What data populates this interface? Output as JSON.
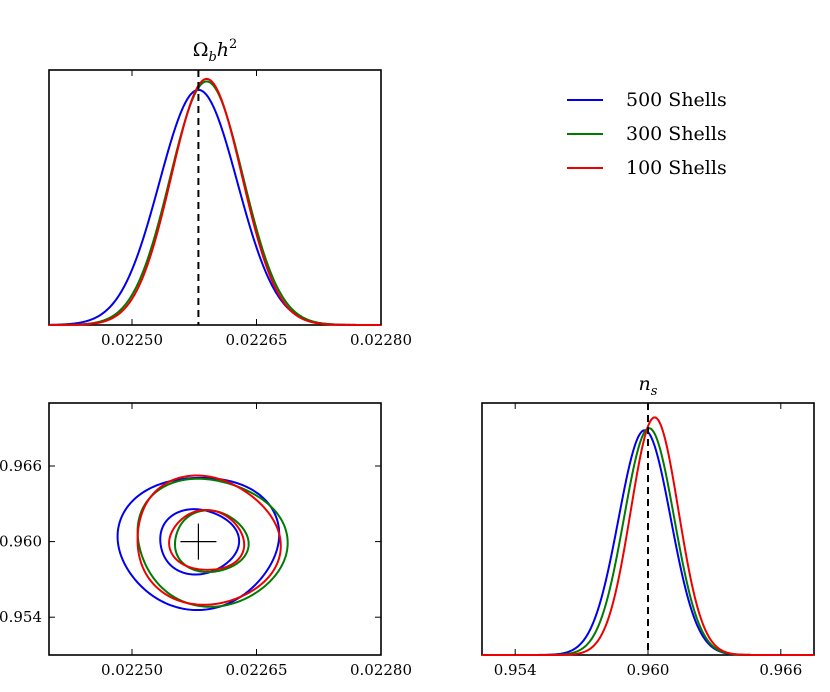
{
  "chart_data": {
    "type": "line",
    "figure": "triangle plot of posterior distributions",
    "colors": {
      "blue": "#0000ee",
      "green": "#007a00",
      "red": "#ee0000",
      "axis": "#000000"
    },
    "legend": {
      "placement": "top-right",
      "entries": [
        {
          "label": "500 Shells",
          "color": "#0000ee"
        },
        {
          "label": "300 Shells",
          "color": "#007a00"
        },
        {
          "label": "100 Shells",
          "color": "#ee0000"
        }
      ]
    },
    "panels": {
      "omega": {
        "title_main": "Ω",
        "title_sub": "b",
        "title_h": "h",
        "title_sup": "2",
        "xlim": [
          0.0224,
          0.0228
        ],
        "xticks": [
          0.0225,
          0.02265,
          0.0228
        ],
        "xtick_labels": [
          "0.02250",
          "0.02265",
          "0.02280"
        ],
        "fiducial": 0.02258,
        "series": [
          {
            "name": "500 Shells",
            "color": "#0000ee",
            "mean": 0.02258,
            "sigma": 4.7e-05,
            "peak": 0.922
          },
          {
            "name": "300 Shells",
            "color": "#007a00",
            "mean": 0.02259,
            "sigma": 4.4e-05,
            "peak": 0.955
          },
          {
            "name": "100 Shells",
            "color": "#ee0000",
            "mean": 0.02259,
            "sigma": 4.25e-05,
            "peak": 0.965
          }
        ]
      },
      "contour": {
        "xlim": [
          0.0224,
          0.0228
        ],
        "ylim": [
          0.951,
          0.971
        ],
        "xticks": [
          0.0225,
          0.02265,
          0.0228
        ],
        "xtick_labels": [
          "0.02250",
          "0.02265",
          "0.02280"
        ],
        "yticks": [
          0.954,
          0.96,
          0.966
        ],
        "ytick_labels": [
          "0.954",
          "0.960",
          "0.966"
        ],
        "fiducial": {
          "x": 0.02258,
          "y": 0.96
        },
        "contours": [
          {
            "name": "500 Shells",
            "color": "#0000ee",
            "cx": 0.02258,
            "cy": 0.96,
            "inner": [
              4.8e-05,
              0.00255
            ],
            "outer": [
              9.5e-05,
              0.00535
            ],
            "tilt": 0.05
          },
          {
            "name": "300 Shells",
            "color": "#007a00",
            "cx": 0.022595,
            "cy": 0.95998,
            "inner": [
              4.5e-05,
              0.0024
            ],
            "outer": [
              9e-05,
              0.00505
            ],
            "tilt": -0.1
          },
          {
            "name": "100 Shells",
            "color": "#ee0000",
            "cx": 0.02259,
            "cy": 0.96005,
            "inner": [
              4.45e-05,
              0.0024
            ],
            "outer": [
              8.8e-05,
              0.005
            ],
            "tilt": -0.16
          }
        ]
      },
      "ns": {
        "title_main": "n",
        "title_sub": "s",
        "xlim": [
          0.9525,
          0.9675
        ],
        "xticks": [
          0.954,
          0.96,
          0.966
        ],
        "xtick_labels": [
          "0.954",
          "0.960",
          "0.966"
        ],
        "fiducial": 0.96,
        "series": [
          {
            "name": "500 Shells",
            "color": "#0000ee",
            "mean": 0.95985,
            "sigma": 0.00118,
            "peak": 0.892
          },
          {
            "name": "300 Shells",
            "color": "#007a00",
            "mean": 0.96005,
            "sigma": 0.00113,
            "peak": 0.9
          },
          {
            "name": "100 Shells",
            "color": "#ee0000",
            "mean": 0.9603,
            "sigma": 0.00108,
            "peak": 0.943
          }
        ]
      }
    }
  }
}
